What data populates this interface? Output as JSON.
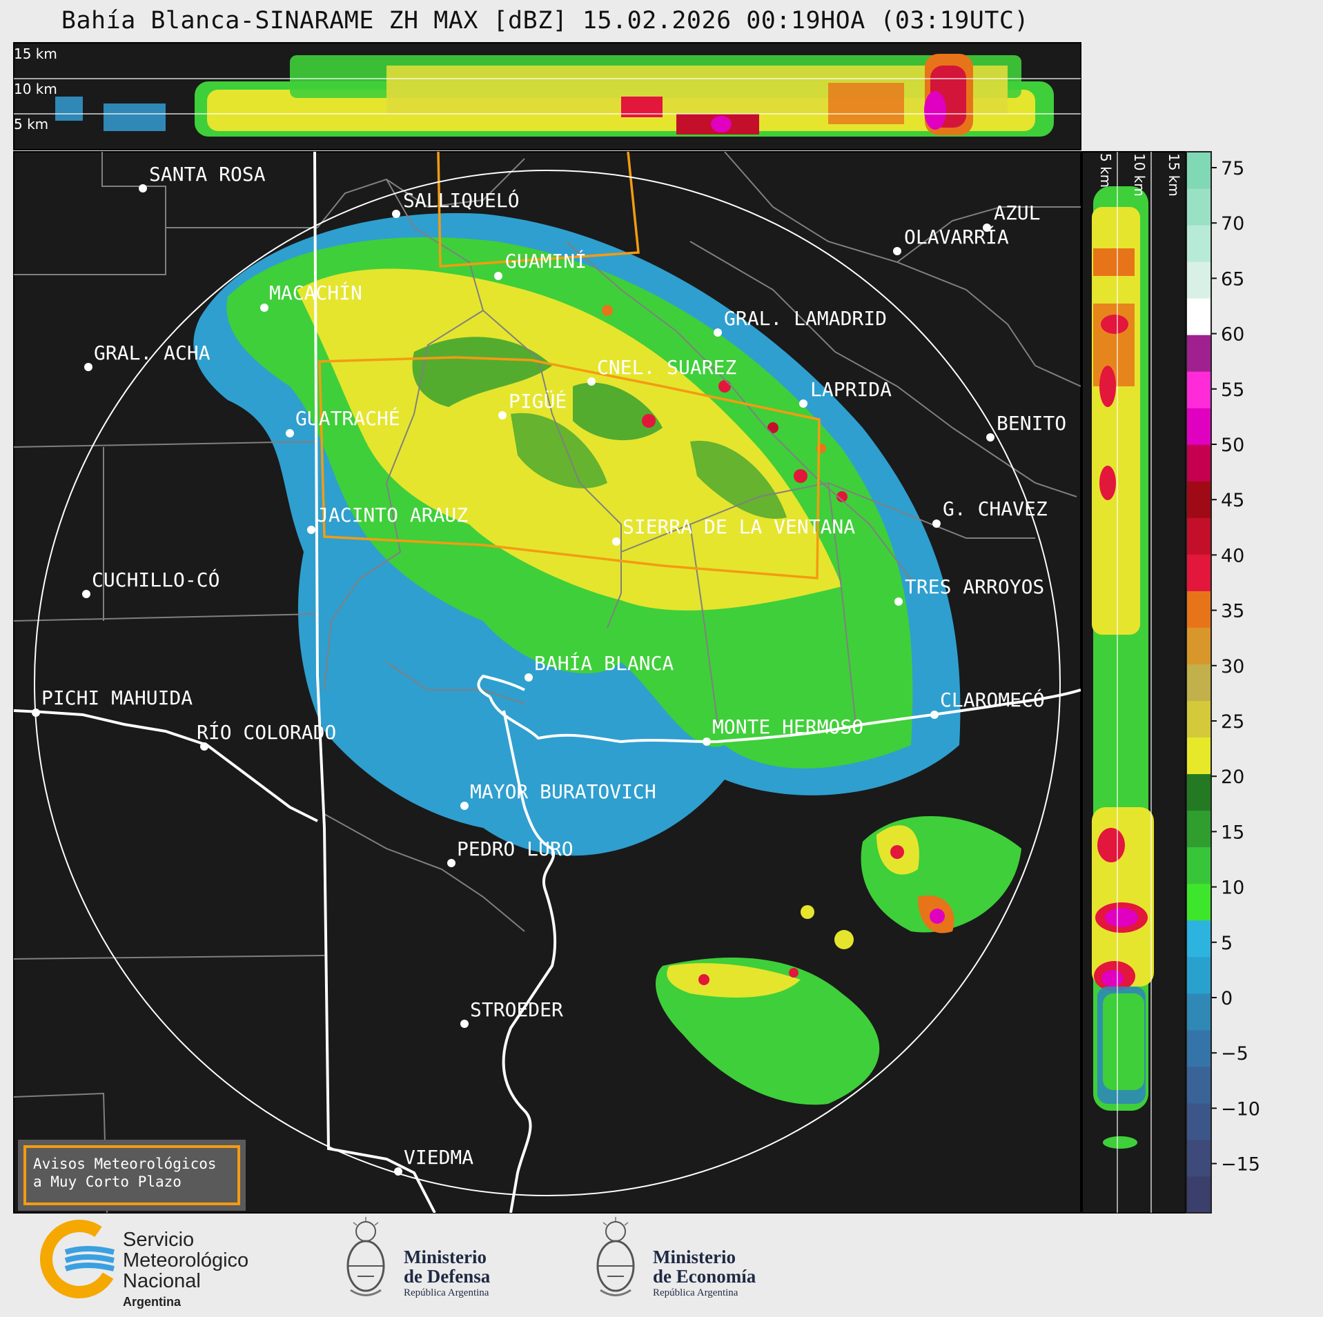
{
  "title": "Bahía Blanca-SINARAME ZH MAX [dBZ] 15.02.2026 00:19HOA (03:19UTC)",
  "top_panel_labels": [
    "15 km",
    "10 km",
    "5 km"
  ],
  "side_panel_labels": [
    "5 km",
    "10 km",
    "15 km"
  ],
  "colorbar": {
    "ticks": [
      "75",
      "70",
      "65",
      "60",
      "55",
      "50",
      "45",
      "40",
      "35",
      "30",
      "25",
      "20",
      "15",
      "10",
      "5",
      "0",
      "−5",
      "−10",
      "−15"
    ],
    "colors": [
      "#3b3f6b",
      "#3e4a7a",
      "#3d5689",
      "#3a6398",
      "#3574a8",
      "#2f88b6",
      "#28a1cf",
      "#2db3df",
      "#3ee62b",
      "#39c53a",
      "#2f9e2f",
      "#237a23",
      "#e8e82a",
      "#d4c93b",
      "#c2b04a",
      "#d9962a",
      "#e8741a",
      "#e3163b",
      "#c40f2a",
      "#a00a17",
      "#c4004f",
      "#e000c0",
      "#ff2bd8",
      "#a02090",
      "#ffffff",
      "#d8f0e5",
      "#b8ead8",
      "#9ae0c5",
      "#80d8b5"
    ]
  },
  "cities": [
    {
      "name": "SANTA ROSA"
    },
    {
      "name": "SALLIQUELÓ"
    },
    {
      "name": "GUAMINÍ"
    },
    {
      "name": "AZUL"
    },
    {
      "name": "OLAVARRÍA"
    },
    {
      "name": "MACACHÍN"
    },
    {
      "name": "GRAL. LAMADRID"
    },
    {
      "name": "GRAL. ACHA"
    },
    {
      "name": "CNEL. SUAREZ"
    },
    {
      "name": "LAPRIDA"
    },
    {
      "name": "PIGÜÉ"
    },
    {
      "name": "GUATRACHÉ"
    },
    {
      "name": "BENITO"
    },
    {
      "name": "G. CHAVEZ"
    },
    {
      "name": "JACINTO ARAUZ"
    },
    {
      "name": "SIERRA DE LA VENTANA"
    },
    {
      "name": "CUCHILLO-CÓ"
    },
    {
      "name": "TRES ARROYOS"
    },
    {
      "name": "BAHÍA BLANCA"
    },
    {
      "name": "PICHI MAHUIDA"
    },
    {
      "name": "CLAROMECÓ"
    },
    {
      "name": "MONTE HERMOSO"
    },
    {
      "name": "RÍO COLORADO"
    },
    {
      "name": "MAYOR BURATOVICH"
    },
    {
      "name": "PEDRO LURO"
    },
    {
      "name": "STROEDER"
    },
    {
      "name": "VIEDMA"
    }
  ],
  "warning_box": {
    "line1": "Avisos Meteorológicos",
    "line2": "a Muy Corto Plazo"
  },
  "logos": {
    "smn": {
      "line1": "Servicio",
      "line2": "Meteorológico",
      "line3": "Nacional",
      "line4": "Argentina"
    },
    "defensa": {
      "line1": "Ministerio",
      "line2": "de Defensa",
      "line3": "República Argentina"
    },
    "economia": {
      "line1": "Ministerio",
      "line2": "de Economía",
      "line3": "República Argentina"
    }
  }
}
